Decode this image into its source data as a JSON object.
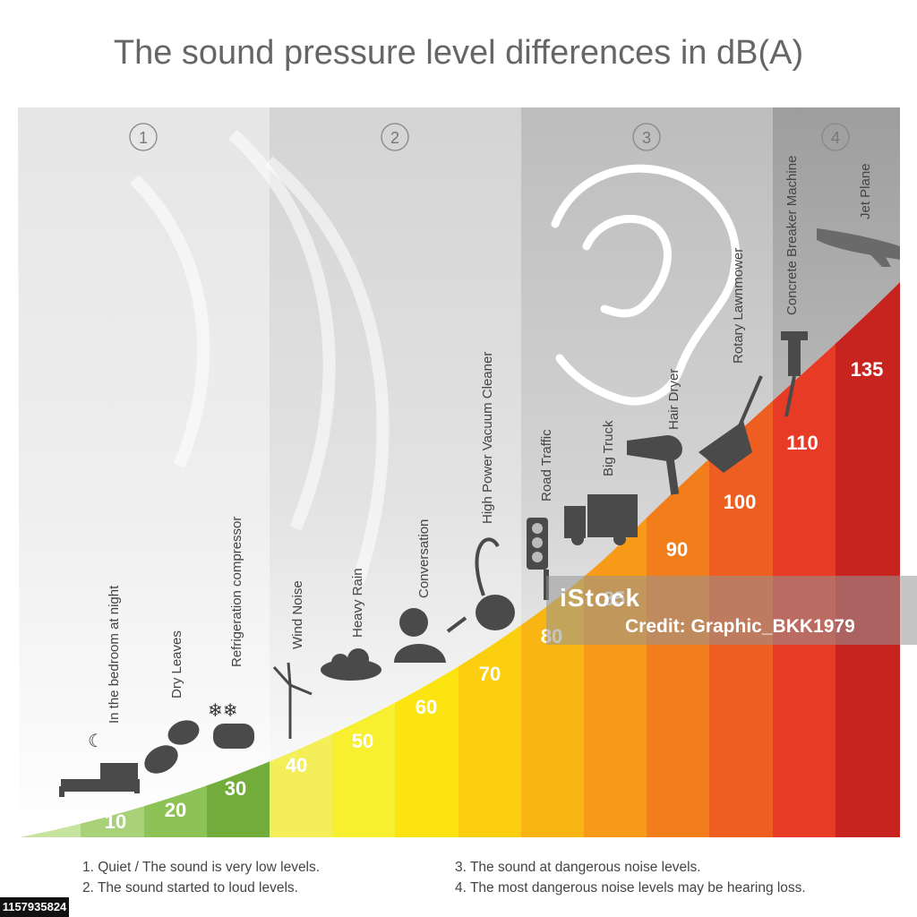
{
  "title": "The sound pressure level differences in dB(A)",
  "zones": [
    {
      "number": "1",
      "color": "#e6e6e6"
    },
    {
      "number": "2",
      "color": "#d4d4d4"
    },
    {
      "number": "3",
      "color": "#bdbdbd"
    },
    {
      "number": "4",
      "color": "#9e9e9e"
    }
  ],
  "levels": [
    {
      "db": "10",
      "source": "In the bedroom at night",
      "color": "#a9d178",
      "icon": "bed-icon"
    },
    {
      "db": "20",
      "source": "Dry Leaves",
      "color": "#8dc356",
      "icon": "leaves-icon"
    },
    {
      "db": "30",
      "source": "Refrigeration compressor",
      "color": "#72ad3c",
      "icon": "compressor-icon"
    },
    {
      "db": "40",
      "source": "Wind Noise",
      "color": "#f4ee59",
      "icon": "wind-turbine-icon"
    },
    {
      "db": "50",
      "source": "Heavy Rain",
      "color": "#f7ef2f",
      "icon": "rain-cloud-icon"
    },
    {
      "db": "60",
      "source": "Conversation",
      "color": "#fbe40f",
      "icon": "person-talking-icon"
    },
    {
      "db": "70",
      "source": "High Power Vacuum Cleaner",
      "color": "#fbce10",
      "icon": "vacuum-cleaner-icon"
    },
    {
      "db": "80",
      "source": "Road Traffic",
      "color": "#f9b514",
      "icon": "traffic-light-icon"
    },
    {
      "db": "85",
      "source": "Big Truck",
      "color": "#f69a17",
      "icon": "truck-icon"
    },
    {
      "db": "90",
      "source": "Hair Dryer",
      "color": "#f27d1b",
      "icon": "hair-dryer-icon"
    },
    {
      "db": "100",
      "source": "Rotary Lawnmower",
      "color": "#ee5e20",
      "icon": "lawnmower-icon"
    },
    {
      "db": "110",
      "source": "Concrete Breaker Machine",
      "color": "#e83b25",
      "icon": "jackhammer-icon"
    },
    {
      "db": "135",
      "source": "Jet Plane",
      "color": "#c8241f",
      "icon": "jet-plane-icon"
    }
  ],
  "legend": {
    "item1": "1. Quiet / The sound is very low levels.",
    "item2": "2. The sound started to loud levels.",
    "item3": "3. The sound at dangerous noise levels.",
    "item4": "4. The most dangerous noise levels may be hearing loss."
  },
  "watermark": {
    "logo": "iStock",
    "credit": "Credit: Graphic_BKK1979"
  },
  "stock_id": "1157935824"
}
